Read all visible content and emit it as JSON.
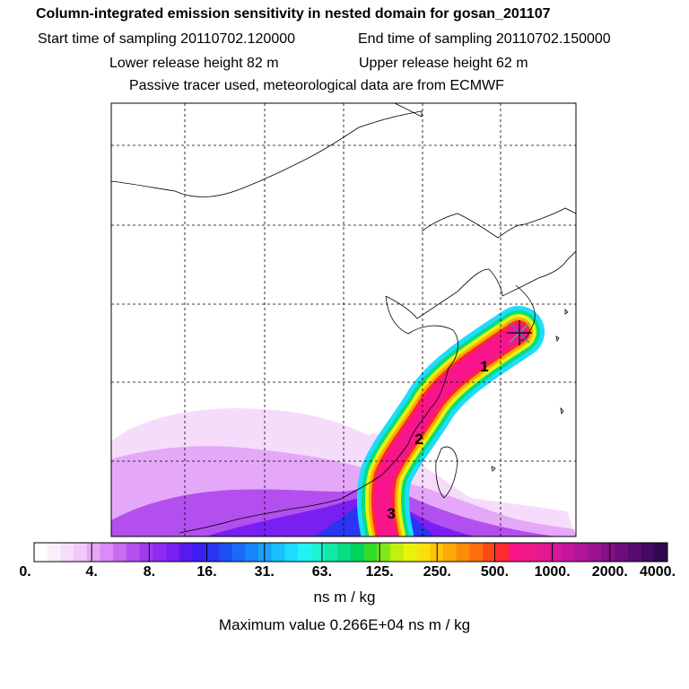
{
  "title": "Column-integrated emission sensitivity in nested domain for gosan_201107",
  "start_time": "Start time of sampling 20110702.120000",
  "end_time": "End time of sampling 20110702.150000",
  "lower_height": "Lower release height   82 m",
  "upper_height": "Upper release height   62 m",
  "tracer_info": "Passive tracer used, meteorological data are from ECMWF",
  "plume_markers": [
    "1",
    "2",
    "3"
  ],
  "colorbar": {
    "labels": [
      "0.",
      "4.",
      "8.",
      "16.",
      "31.",
      "63.",
      "125.",
      "250.",
      "500.",
      "1000.",
      "2000.",
      "4000."
    ],
    "colors": [
      "#ffffff",
      "#fbeefc",
      "#f6dcfb",
      "#f0c8fa",
      "#e5a8f8",
      "#d98af6",
      "#c86cf2",
      "#b44fef",
      "#a03aee",
      "#8e2cf0",
      "#7a1ff2",
      "#5a18f0",
      "#3c1ef0",
      "#2a34f2",
      "#1f4ff4",
      "#1b6af6",
      "#1a85f8",
      "#1ba2fa",
      "#1cc0fc",
      "#1edcfd",
      "#22f2f6",
      "#1df2d2",
      "#10e8a8",
      "#06dc82",
      "#00d25a",
      "#30dc28",
      "#80e81a",
      "#c0f010",
      "#e8f20c",
      "#fae00a",
      "#fcc408",
      "#fca808",
      "#fc8c08",
      "#fc700c",
      "#fc4a14",
      "#fc2a30",
      "#f8148a",
      "#f0188a",
      "#e41890",
      "#d41898",
      "#c4169c",
      "#b01498",
      "#9a1290",
      "#841086",
      "#6e0e7c",
      "#580c70",
      "#440a62",
      "#300850"
    ]
  },
  "units": "ns m / kg",
  "max_value": "Maximum value  0.266E+04 ns m / kg"
}
